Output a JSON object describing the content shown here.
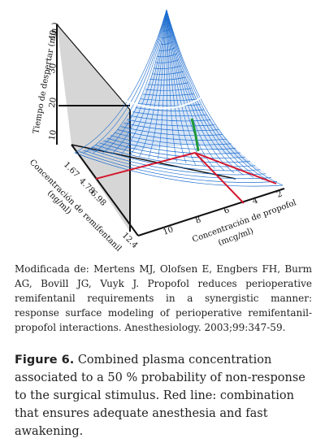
{
  "figure": {
    "axes": {
      "z_label": "Tiempo de despertar (min.)",
      "z_ticks": [
        "10",
        "20",
        "30",
        "40"
      ],
      "y_label_line1": "Concentración de remifentanil",
      "y_label_line2": "(ng/ml)",
      "y_ticks": [
        "1.67",
        "4.78",
        "6.98",
        "12.4"
      ],
      "x_label_line1": "Concentración de propofol",
      "x_label_line2": "(mcg/ml)",
      "x_ticks": [
        "2",
        "4",
        "6",
        "8",
        "10"
      ]
    },
    "colors": {
      "surface": "#1f6fd0",
      "red_line": "#d4182f",
      "green_line": "#1f9a3a",
      "white_line": "#ffffff",
      "back_wall": "#cfcfcf"
    }
  },
  "source_text": "Modificada de: Mertens MJ, Olofsen E, Engbers FH, Burm AG, Bovill JG, Vuyk J. Propofol reduces perioperative remifentanil requirements in a synergistic manner: response surface modeling of perioperative remifentanil-propofol interactions. Anesthesiology. 2003;99:347-59.",
  "caption": {
    "label": "Figure 6.",
    "text": " Combined plasma concentration associated to a 50 % probability of non-response to the surgical stimulus. Red line: combination that ensures adequate anesthesia and fast awakening."
  }
}
